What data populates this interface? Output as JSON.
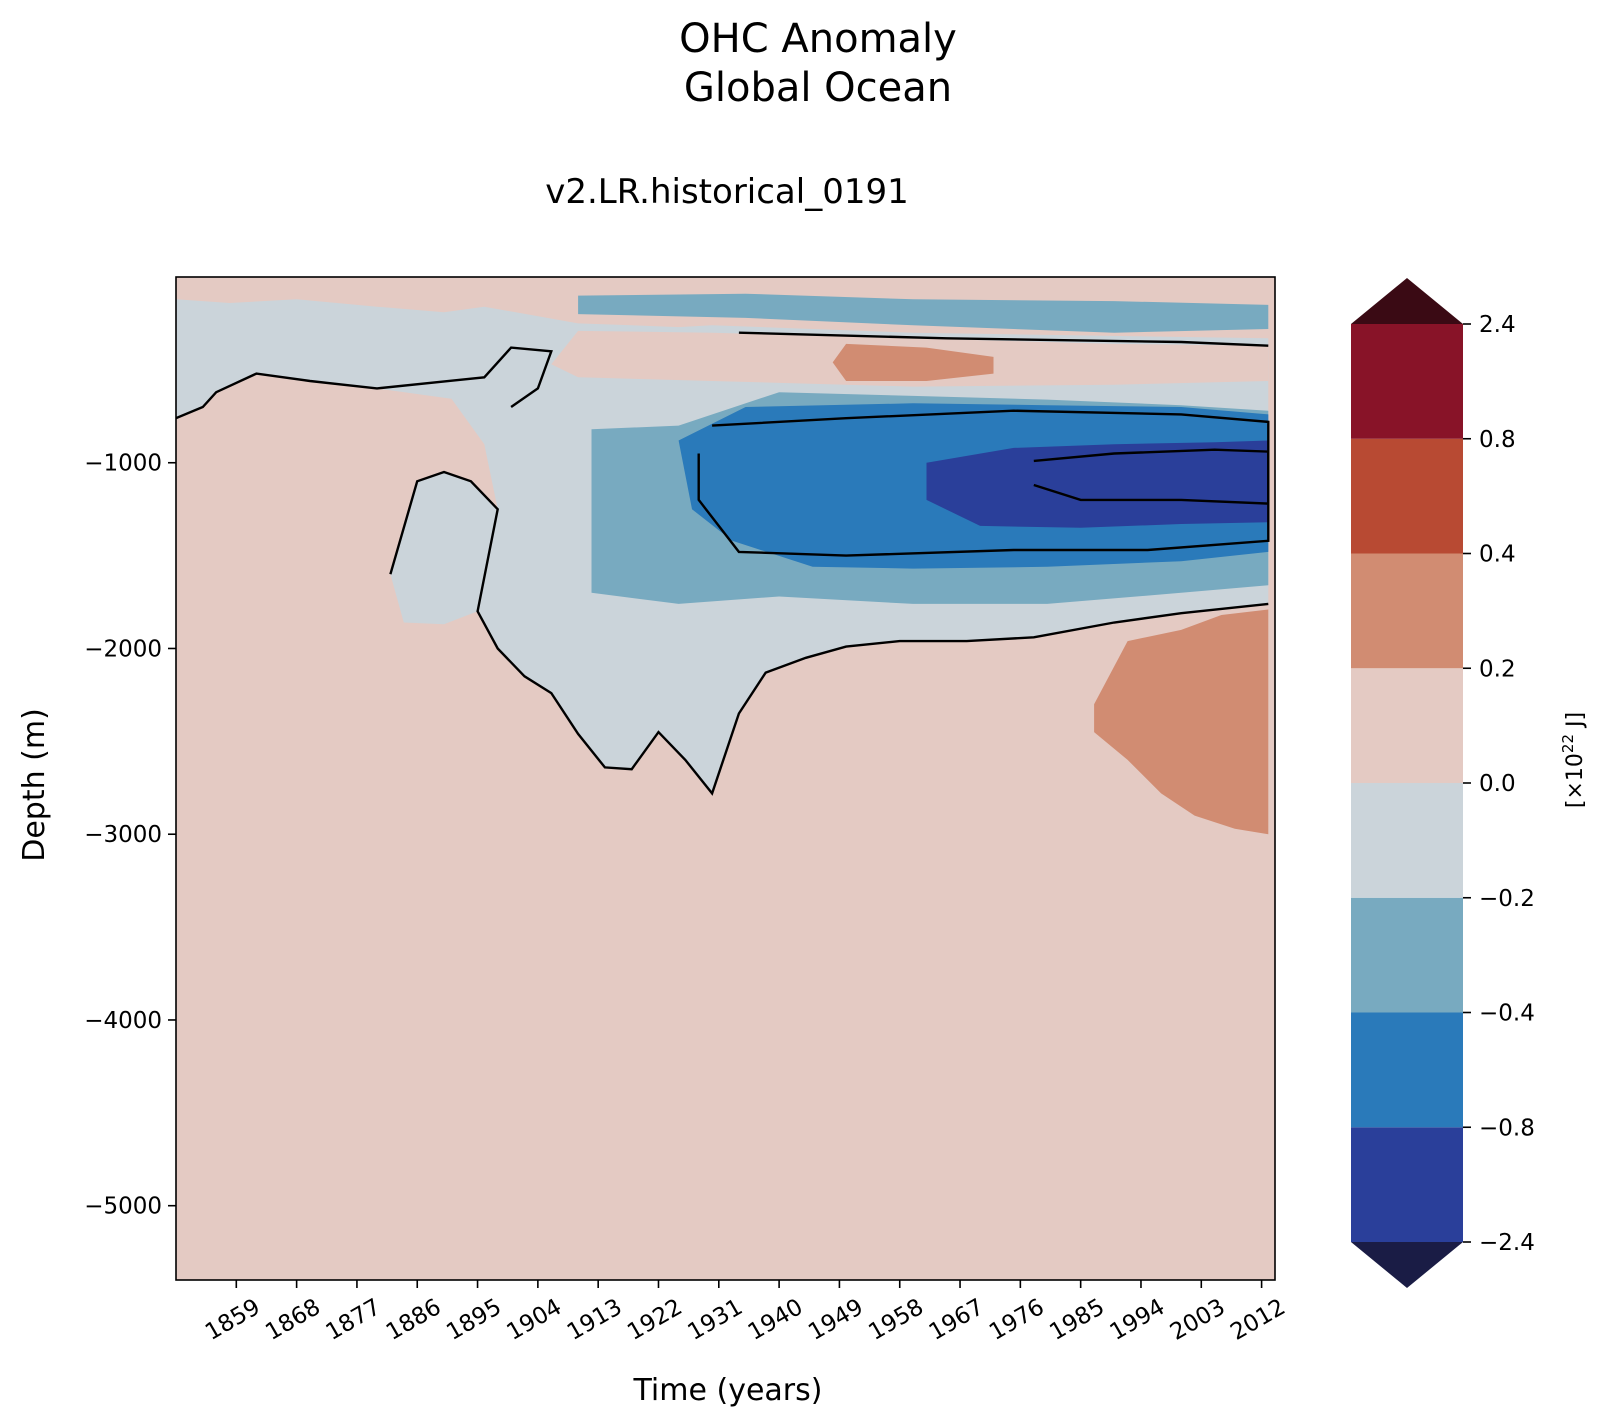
{
  "chart_data": {
    "type": "heatmap",
    "title": "OHC Anomaly",
    "subtitle": "Global Ocean",
    "run_label": "v2.LR.historical_0191",
    "xlabel": "Time (years)",
    "ylabel": "Depth (m)",
    "colorbar_label": "[×10",
    "colorbar_label_exp": "22",
    "colorbar_label_unit": " J]",
    "xlim": [
      1850,
      2014
    ],
    "ylim": [
      -5400,
      0
    ],
    "xticks": [
      1859,
      1868,
      1877,
      1886,
      1895,
      1904,
      1913,
      1922,
      1931,
      1940,
      1949,
      1958,
      1967,
      1976,
      1985,
      1994,
      2003,
      2012
    ],
    "xtick_labels": [
      "1859",
      "1868",
      "1877",
      "1886",
      "1895",
      "1904",
      "1913",
      "1922",
      "1931",
      "1940",
      "1949",
      "1958",
      "1967",
      "1976",
      "1985",
      "1994",
      "2003",
      "2012"
    ],
    "yticks": [
      -1000,
      -2000,
      -3000,
      -4000,
      -5000
    ],
    "ytick_labels": [
      "−1000",
      "−2000",
      "−3000",
      "−4000",
      "−5000"
    ],
    "levels": [
      -2.4,
      -0.8,
      -0.4,
      -0.2,
      0.0,
      0.2,
      0.4,
      0.8,
      2.4
    ],
    "level_labels": [
      "−2.4",
      "−0.8",
      "−0.4",
      "−0.2",
      "0.0",
      "0.2",
      "0.4",
      "0.8",
      "2.4"
    ],
    "colors": [
      "#2a3f9a",
      "#2a7aba",
      "#78aac0",
      "#cbd4da",
      "#e4cac3",
      "#d18c72",
      "#b84a33",
      "#881328"
    ],
    "under_color": "#1a1c45",
    "over_color": "#3a0a14",
    "background_level_color": "#e4cac3",
    "contour_color": "#000000",
    "grid": false,
    "colorbar": "right",
    "regions": [
      {
        "name": "deep-warm-patch",
        "level": 0.2,
        "poly": [
          [
            1992,
            -1960
          ],
          [
            2000,
            -1900
          ],
          [
            2006,
            -1820
          ],
          [
            2013,
            -1790
          ],
          [
            2013,
            -3000
          ],
          [
            2008,
            -2970
          ],
          [
            2002,
            -2900
          ],
          [
            1997,
            -2780
          ],
          [
            1992,
            -2600
          ],
          [
            1987,
            -2450
          ],
          [
            1987,
            -2300
          ]
        ]
      },
      {
        "name": "mid-cool-tongue",
        "level": -0.2,
        "poly": [
          [
            1850,
            -120
          ],
          [
            1858,
            -140
          ],
          [
            1868,
            -120
          ],
          [
            1880,
            -160
          ],
          [
            1890,
            -190
          ],
          [
            1896,
            -160
          ],
          [
            1910,
            -250
          ],
          [
            1918,
            -260
          ],
          [
            1925,
            -270
          ],
          [
            1930,
            -260
          ],
          [
            1960,
            -300
          ],
          [
            2013,
            -330
          ],
          [
            2013,
            -1760
          ],
          [
            2000,
            -1810
          ],
          [
            1990,
            -1860
          ],
          [
            1978,
            -1940
          ],
          [
            1968,
            -1960
          ],
          [
            1958,
            -1960
          ],
          [
            1950,
            -1990
          ],
          [
            1944,
            -2050
          ],
          [
            1938,
            -2130
          ],
          [
            1934,
            -2350
          ],
          [
            1930,
            -2780
          ],
          [
            1926,
            -2600
          ],
          [
            1922,
            -2450
          ],
          [
            1918,
            -2650
          ],
          [
            1914,
            -2640
          ],
          [
            1910,
            -2460
          ],
          [
            1906,
            -2240
          ],
          [
            1902,
            -2150
          ],
          [
            1898,
            -2000
          ],
          [
            1895,
            -1800
          ],
          [
            1890,
            -1870
          ],
          [
            1884,
            -1860
          ],
          [
            1882,
            -1600
          ],
          [
            1886,
            -1100
          ],
          [
            1890,
            -1050
          ],
          [
            1894,
            -1100
          ],
          [
            1898,
            -1250
          ],
          [
            1896,
            -900
          ],
          [
            1890,
            -600
          ],
          [
            1886,
            -500
          ],
          [
            1896,
            -460
          ],
          [
            1900,
            -380
          ],
          [
            1906,
            -400
          ],
          [
            1904,
            -600
          ],
          [
            1900,
            -700
          ],
          [
            1880,
            -600
          ],
          [
            1862,
            -520
          ],
          [
            1856,
            -620
          ],
          [
            1854,
            -700
          ],
          [
            1850,
            -760
          ]
        ]
      },
      {
        "name": "upper-warm-lens",
        "level": 0.0,
        "poly": [
          [
            1910,
            -290
          ],
          [
            1930,
            -300
          ],
          [
            1960,
            -330
          ],
          [
            1990,
            -360
          ],
          [
            2013,
            -370
          ],
          [
            2013,
            -560
          ],
          [
            1990,
            -580
          ],
          [
            1960,
            -590
          ],
          [
            1930,
            -560
          ],
          [
            1910,
            -540
          ],
          [
            1906,
            -470
          ]
        ]
      },
      {
        "name": "upper-warm-strong",
        "level": 0.2,
        "poly": [
          [
            1950,
            -360
          ],
          [
            1962,
            -380
          ],
          [
            1972,
            -430
          ],
          [
            1972,
            -520
          ],
          [
            1962,
            -560
          ],
          [
            1950,
            -560
          ],
          [
            1948,
            -460
          ]
        ]
      },
      {
        "name": "cool-band-shallow",
        "level": -0.4,
        "poly": [
          [
            1910,
            -100
          ],
          [
            1935,
            -90
          ],
          [
            1960,
            -120
          ],
          [
            1990,
            -130
          ],
          [
            2013,
            -150
          ],
          [
            2013,
            -280
          ],
          [
            1990,
            -300
          ],
          [
            1960,
            -260
          ],
          [
            1935,
            -220
          ],
          [
            1910,
            -200
          ]
        ]
      },
      {
        "name": "subsurface-cool-1",
        "level": -0.4,
        "poly": [
          [
            1912,
            -820
          ],
          [
            1925,
            -800
          ],
          [
            1940,
            -620
          ],
          [
            1960,
            -640
          ],
          [
            1980,
            -660
          ],
          [
            2000,
            -690
          ],
          [
            2013,
            -720
          ],
          [
            2013,
            -1660
          ],
          [
            2000,
            -1700
          ],
          [
            1980,
            -1760
          ],
          [
            1960,
            -1760
          ],
          [
            1940,
            -1720
          ],
          [
            1925,
            -1760
          ],
          [
            1912,
            -1700
          ]
        ]
      },
      {
        "name": "subsurface-cool-2",
        "level": -0.8,
        "poly": [
          [
            1925,
            -880
          ],
          [
            1935,
            -700
          ],
          [
            1960,
            -680
          ],
          [
            1980,
            -690
          ],
          [
            2000,
            -700
          ],
          [
            2013,
            -740
          ],
          [
            2013,
            -1480
          ],
          [
            2000,
            -1530
          ],
          [
            1980,
            -1560
          ],
          [
            1960,
            -1570
          ],
          [
            1945,
            -1560
          ],
          [
            1933,
            -1420
          ],
          [
            1927,
            -1250
          ]
        ]
      },
      {
        "name": "subsurface-cool-3",
        "level": -2.4,
        "poly": [
          [
            1962,
            -1000
          ],
          [
            1975,
            -920
          ],
          [
            1990,
            -900
          ],
          [
            2005,
            -890
          ],
          [
            2013,
            -880
          ],
          [
            2013,
            -1320
          ],
          [
            2000,
            -1330
          ],
          [
            1985,
            -1350
          ],
          [
            1970,
            -1340
          ],
          [
            1962,
            -1200
          ]
        ]
      }
    ],
    "contours": [
      {
        "points": [
          [
            1934,
            -300
          ],
          [
            1965,
            -330
          ],
          [
            2000,
            -350
          ],
          [
            2013,
            -370
          ]
        ]
      },
      {
        "points": [
          [
            1930,
            -800
          ],
          [
            1950,
            -760
          ],
          [
            1975,
            -720
          ],
          [
            2000,
            -740
          ],
          [
            2013,
            -780
          ],
          [
            2013,
            -1420
          ],
          [
            1995,
            -1470
          ],
          [
            1975,
            -1470
          ],
          [
            1950,
            -1500
          ],
          [
            1934,
            -1480
          ],
          [
            1928,
            -1200
          ],
          [
            1928,
            -950
          ]
        ]
      },
      {
        "points": [
          [
            1978,
            -990
          ],
          [
            1990,
            -950
          ],
          [
            2005,
            -930
          ],
          [
            2013,
            -940
          ],
          [
            2013,
            -1220
          ],
          [
            2000,
            -1200
          ],
          [
            1985,
            -1200
          ],
          [
            1978,
            -1120
          ]
        ]
      },
      {
        "points": [
          [
            1850,
            -760
          ],
          [
            1854,
            -700
          ],
          [
            1856,
            -620
          ],
          [
            1862,
            -520
          ],
          [
            1870,
            -560
          ],
          [
            1880,
            -600
          ],
          [
            1896,
            -540
          ],
          [
            1900,
            -380
          ],
          [
            1906,
            -400
          ],
          [
            1904,
            -600
          ],
          [
            1900,
            -700
          ]
        ]
      },
      {
        "points": [
          [
            1882,
            -1600
          ],
          [
            1886,
            -1100
          ],
          [
            1890,
            -1050
          ],
          [
            1894,
            -1100
          ],
          [
            1898,
            -1250
          ],
          [
            1895,
            -1800
          ],
          [
            1898,
            -2000
          ],
          [
            1902,
            -2150
          ],
          [
            1906,
            -2240
          ],
          [
            1910,
            -2460
          ],
          [
            1914,
            -2640
          ],
          [
            1918,
            -2650
          ],
          [
            1922,
            -2450
          ],
          [
            1926,
            -2600
          ],
          [
            1930,
            -2780
          ],
          [
            1934,
            -2350
          ],
          [
            1938,
            -2130
          ],
          [
            1944,
            -2050
          ],
          [
            1950,
            -1990
          ],
          [
            1958,
            -1960
          ],
          [
            1968,
            -1960
          ],
          [
            1978,
            -1940
          ],
          [
            1990,
            -1860
          ],
          [
            2000,
            -1810
          ],
          [
            2013,
            -1760
          ]
        ]
      }
    ]
  }
}
